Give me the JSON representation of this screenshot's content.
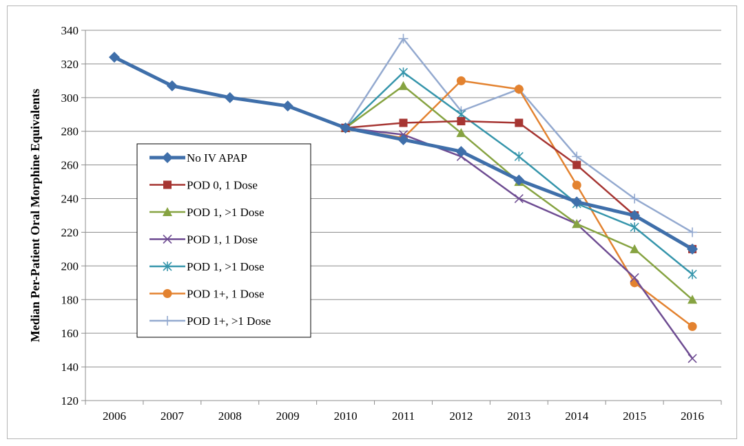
{
  "chart_data": {
    "type": "line",
    "title": "",
    "xlabel": "",
    "ylabel": "Median Per-Patient Oral Morphine Equivalents",
    "ylim": [
      120,
      340
    ],
    "yticks": [
      120,
      140,
      160,
      180,
      200,
      220,
      240,
      260,
      280,
      300,
      320,
      340
    ],
    "categories": [
      "2006",
      "2007",
      "2008",
      "2009",
      "2010",
      "2011",
      "2012",
      "2013",
      "2014",
      "2015",
      "2016"
    ],
    "grid": "horizontal",
    "legend_position": "inside-left",
    "series": [
      {
        "name": "No IV APAP",
        "color": "#3f6faa",
        "marker": "diamond",
        "values": [
          324,
          307,
          300,
          295,
          282,
          275,
          268,
          251,
          238,
          230,
          210
        ]
      },
      {
        "name": "POD 0, 1 Dose",
        "color": "#a63532",
        "marker": "square",
        "values": [
          null,
          null,
          null,
          null,
          282,
          285,
          286,
          285,
          260,
          230,
          210
        ]
      },
      {
        "name": "POD 1, >1 Dose",
        "color": "#86a341",
        "marker": "triangle",
        "values": [
          null,
          null,
          null,
          null,
          282,
          307,
          279,
          250,
          225,
          210,
          180
        ]
      },
      {
        "name": "POD 1, 1 Dose",
        "color": "#6e4c92",
        "marker": "x",
        "values": [
          null,
          null,
          null,
          null,
          282,
          278,
          265,
          240,
          225,
          193,
          145
        ]
      },
      {
        "name": "POD 1, >1 Dose",
        "color": "#3595ab",
        "marker": "asterisk",
        "values": [
          null,
          null,
          null,
          null,
          282,
          315,
          290,
          265,
          237,
          223,
          195
        ]
      },
      {
        "name": "POD 1+, 1 Dose",
        "color": "#e3822f",
        "marker": "circle",
        "values": [
          null,
          null,
          null,
          null,
          282,
          276,
          310,
          305,
          248,
          190,
          164
        ]
      },
      {
        "name": "POD 1+, >1 Dose",
        "color": "#93a9cf",
        "marker": "plus",
        "values": [
          null,
          null,
          null,
          null,
          282,
          335,
          292,
          305,
          265,
          240,
          220
        ]
      }
    ]
  }
}
